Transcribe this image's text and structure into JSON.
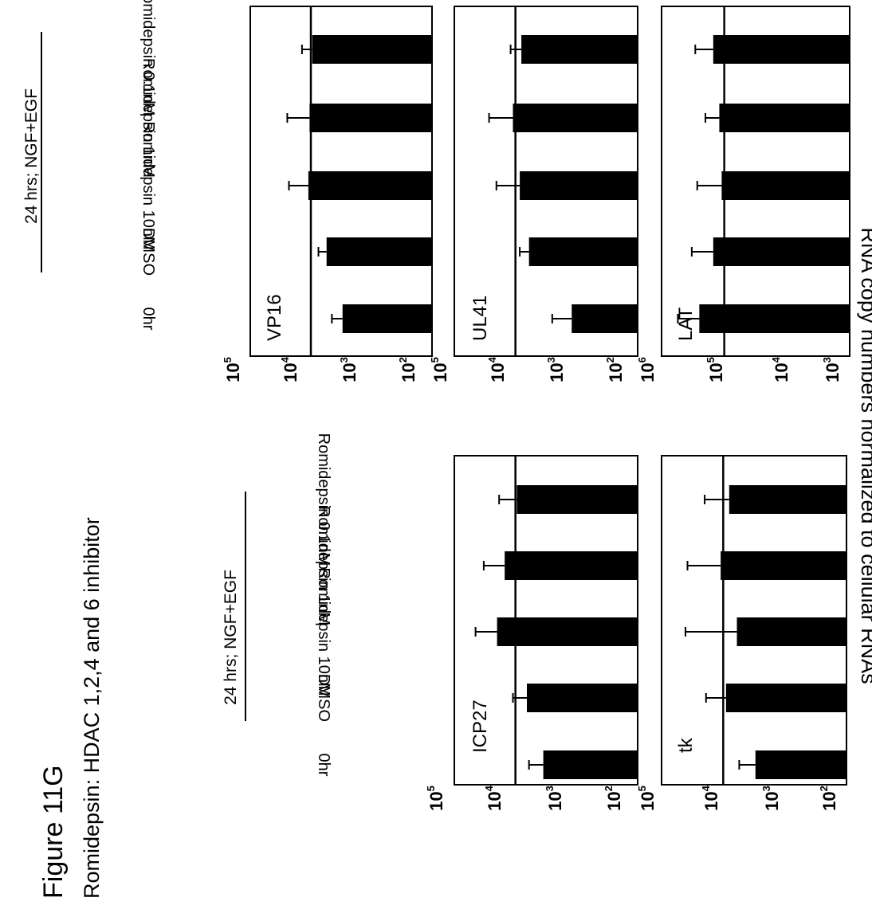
{
  "figure": {
    "title": "Figure 11G",
    "subtitle": "Romidepsin: HDAC 1,2,4 and 6 inhibitor",
    "ylabel": "RNA copy numbers normalized to cellular RNAs"
  },
  "conditions": {
    "group_label": "24 hrs; NGF+EGF",
    "labels": [
      "0hr",
      "DMSO",
      "Romidepsin 10nM",
      "Romidepsin 1nM",
      "Romidepsin 0.1nM"
    ]
  },
  "style": {
    "bar_color": "#000000",
    "frame_color": "#000000"
  },
  "chart_data": [
    {
      "type": "bar",
      "name": "ICP27",
      "scale": "log10",
      "categories": [
        "0hr",
        "DMSO",
        "Romidepsin 10nM",
        "Romidepsin 1nM",
        "Romidepsin 0.1nM"
      ],
      "values": [
        3500,
        6500,
        20000,
        15000,
        9500
      ],
      "error": [
        2500,
        4500,
        25000,
        18000,
        9000
      ],
      "ylim": [
        100,
        100000
      ],
      "ticks": [
        "10^5",
        "10^4",
        "10^3",
        "10^2"
      ],
      "reference_line": 10000
    },
    {
      "type": "bar",
      "name": "tk",
      "scale": "log10",
      "categories": [
        "0hr",
        "DMSO",
        "Romidepsin 10nM",
        "Romidepsin 1nM",
        "Romidepsin 0.1nM"
      ],
      "values": [
        3000,
        9000,
        6000,
        11000,
        8000
      ],
      "error": [
        2500,
        10000,
        35000,
        27000,
        12000
      ],
      "ylim": [
        100,
        100000
      ],
      "ticks": [
        "10^5",
        "10^4",
        "10^3",
        "10^2"
      ],
      "reference_line": 10000
    },
    {
      "type": "bar",
      "name": "VP16",
      "scale": "log10",
      "categories": [
        "0hr",
        "DMSO",
        "Romidepsin 10nM",
        "Romidepsin 1nM",
        "Romidepsin 0.1nM"
      ],
      "values": [
        3000,
        5500,
        11000,
        10500,
        9500
      ],
      "error": [
        1500,
        2000,
        12000,
        14000,
        4500
      ],
      "ylim": [
        100,
        100000
      ],
      "ticks": [
        "10^5",
        "10^4",
        "10^3",
        "10^2"
      ],
      "reference_line": 10000
    },
    {
      "type": "bar",
      "name": "UL41",
      "scale": "log10",
      "categories": [
        "0hr",
        "DMSO",
        "Romidepsin 10nM",
        "Romidepsin 1nM",
        "Romidepsin 0.1nM"
      ],
      "values": [
        1200,
        6000,
        8500,
        11000,
        8000
      ],
      "error": [
        1300,
        2500,
        12000,
        16000,
        4000
      ],
      "ylim": [
        100,
        100000
      ],
      "ticks": [
        "10^5",
        "10^4",
        "10^3",
        "10^2"
      ],
      "reference_line": 10000
    },
    {
      "type": "bar",
      "name": "LAT",
      "scale": "log10",
      "categories": [
        "0hr",
        "DMSO",
        "Romidepsin 10nM",
        "Romidepsin 1nM",
        "Romidepsin 0.1nM"
      ],
      "values": [
        250000,
        150000,
        110000,
        120000,
        150000
      ],
      "error": [
        300000,
        180000,
        160000,
        80000,
        140000
      ],
      "ylim": [
        1000,
        1000000
      ],
      "ticks": [
        "10^6",
        "10^5",
        "10^4",
        "10^3"
      ],
      "reference_line": 100000
    }
  ]
}
